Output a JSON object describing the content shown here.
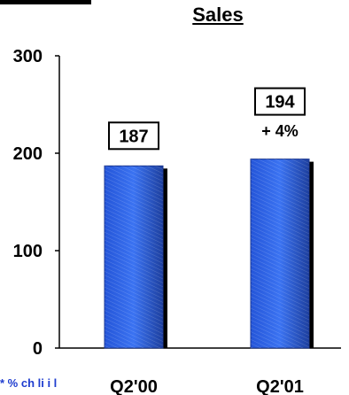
{
  "chart_data": {
    "type": "bar",
    "title": "Sales",
    "categories": [
      "Q2'00",
      "Q2'01"
    ],
    "values": [
      187,
      194
    ],
    "data_labels": [
      "187",
      "194"
    ],
    "annotations": [
      "+ 4%"
    ],
    "yticks": [
      0,
      100,
      200,
      300
    ],
    "ylim": [
      0,
      300
    ],
    "xlabel": "",
    "ylabel": "",
    "grid": false,
    "colors": {
      "bar": "#2f62e6",
      "bar_dark": "#1a3690",
      "shadow": "#000000"
    }
  },
  "footnote": "* % ch                                                  li         i   l"
}
